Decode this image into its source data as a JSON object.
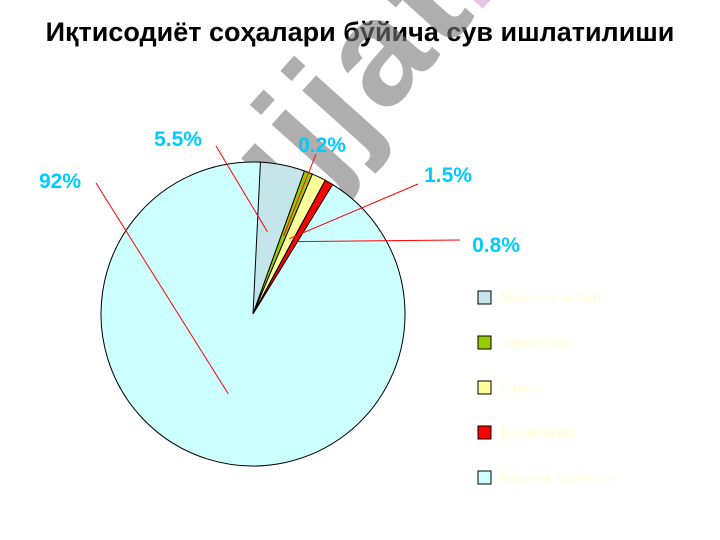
{
  "title": "Иқтисодиёт соҳалари бўйича сув ишлатилиши",
  "watermark": {
    "part1": "Hujjat",
    "part2": "24"
  },
  "chart_data": {
    "type": "pie",
    "series": [
      {
        "name": "Маиший хизмат",
        "value": 5.5,
        "label": "5.5%",
        "color": "#c4e6ea"
      },
      {
        "name": "Энергетика",
        "value": 0.2,
        "label": "0.2%",
        "color": "#99cc00"
      },
      {
        "name": "Саноат",
        "value": 1.5,
        "label": "1.5%",
        "color": "#ffff99"
      },
      {
        "name": "Балиқчилик",
        "value": 0.8,
        "label": "0.8%",
        "color": "#ff0000"
      },
      {
        "name": "Қишлоқ хўжалиги",
        "value": 92,
        "label": "92%",
        "color": "#ccffff"
      }
    ],
    "legend_position": "right",
    "label_color": "#00ccff",
    "leader_color": "#ff0000"
  }
}
